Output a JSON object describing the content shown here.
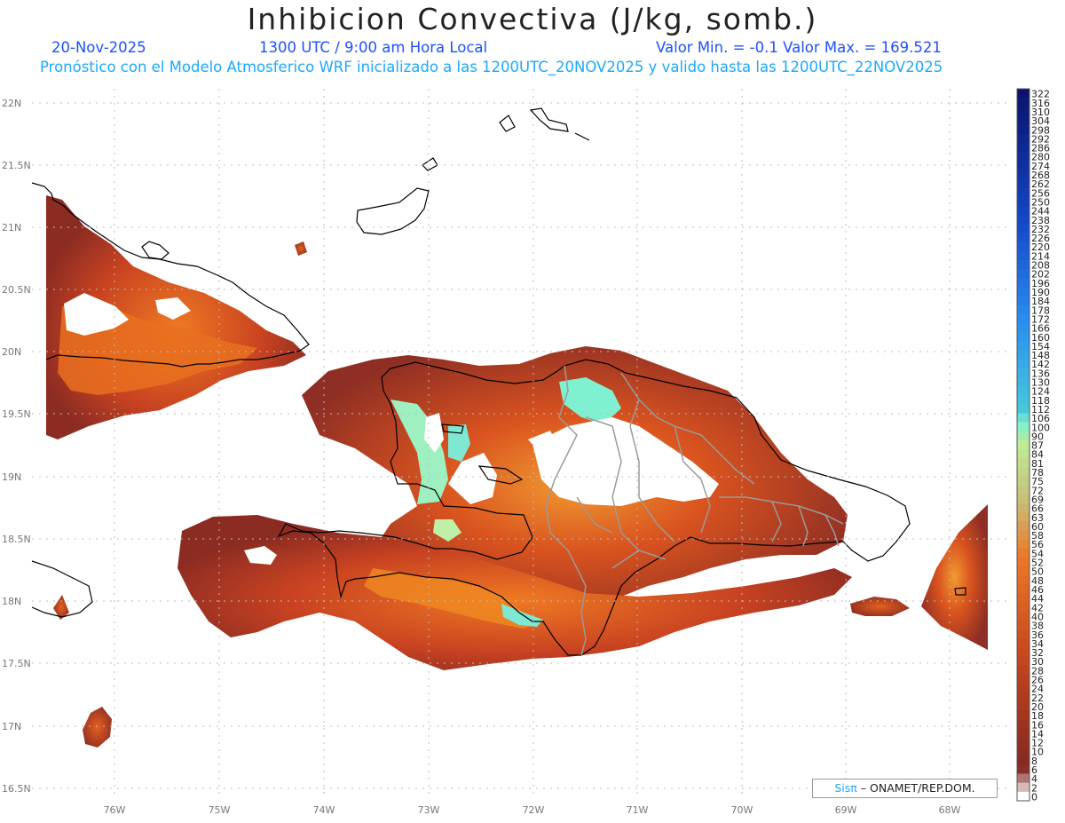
{
  "header": {
    "title": "Inhibicion Convectiva (J/kg, somb.)",
    "date": "20-Nov-2025",
    "time": "1300 UTC / 9:00 am Hora Local",
    "minmax": "Valor Min. = -0.1  Valor Max. = 169.521",
    "forecast": "Pronóstico con el Modelo Atmosferico WRF inicializado a las 1200UTC_20NOV2025 y valido hasta las  1200UTC_22NOV2025"
  },
  "map": {
    "lat_labels": [
      "22N",
      "21.5N",
      "21N",
      "20.5N",
      "20N",
      "19.5N",
      "19N",
      "18.5N",
      "18N",
      "17.5N",
      "17N",
      "16.5N"
    ],
    "lon_labels": [
      "76W",
      "75W",
      "74W",
      "73W",
      "72W",
      "71W",
      "70W",
      "69W",
      "68W"
    ],
    "lat_range": [
      16.5,
      22
    ],
    "lon_range": [
      -76.8,
      -67.6
    ],
    "grid": true,
    "field": "Inhibicion Convectiva (J/kg)",
    "colors": {
      "cin_low": "#8b2b22",
      "cin_mid": "#d4481c",
      "cin_high": "#f08a20",
      "cin_peak": "#7ff0d0",
      "coast": "#000000",
      "border": "#9a9a9a"
    }
  },
  "colorbar": {
    "ticks": [
      "322",
      "316",
      "310",
      "304",
      "298",
      "292",
      "286",
      "280",
      "274",
      "268",
      "262",
      "256",
      "250",
      "244",
      "238",
      "232",
      "226",
      "220",
      "214",
      "208",
      "202",
      "196",
      "190",
      "184",
      "178",
      "172",
      "166",
      "160",
      "154",
      "148",
      "142",
      "136",
      "130",
      "124",
      "118",
      "112",
      "106",
      "100",
      "90",
      "87",
      "84",
      "81",
      "78",
      "75",
      "72",
      "69",
      "66",
      "63",
      "60",
      "58",
      "56",
      "54",
      "52",
      "50",
      "48",
      "46",
      "44",
      "42",
      "40",
      "38",
      "36",
      "34",
      "32",
      "30",
      "28",
      "26",
      "24",
      "22",
      "20",
      "18",
      "16",
      "14",
      "12",
      "10",
      "8",
      "6",
      "4",
      "2",
      "0"
    ]
  },
  "credit": {
    "brand": "Sisπ",
    "org": "– ONAMET/REP.DOM."
  }
}
